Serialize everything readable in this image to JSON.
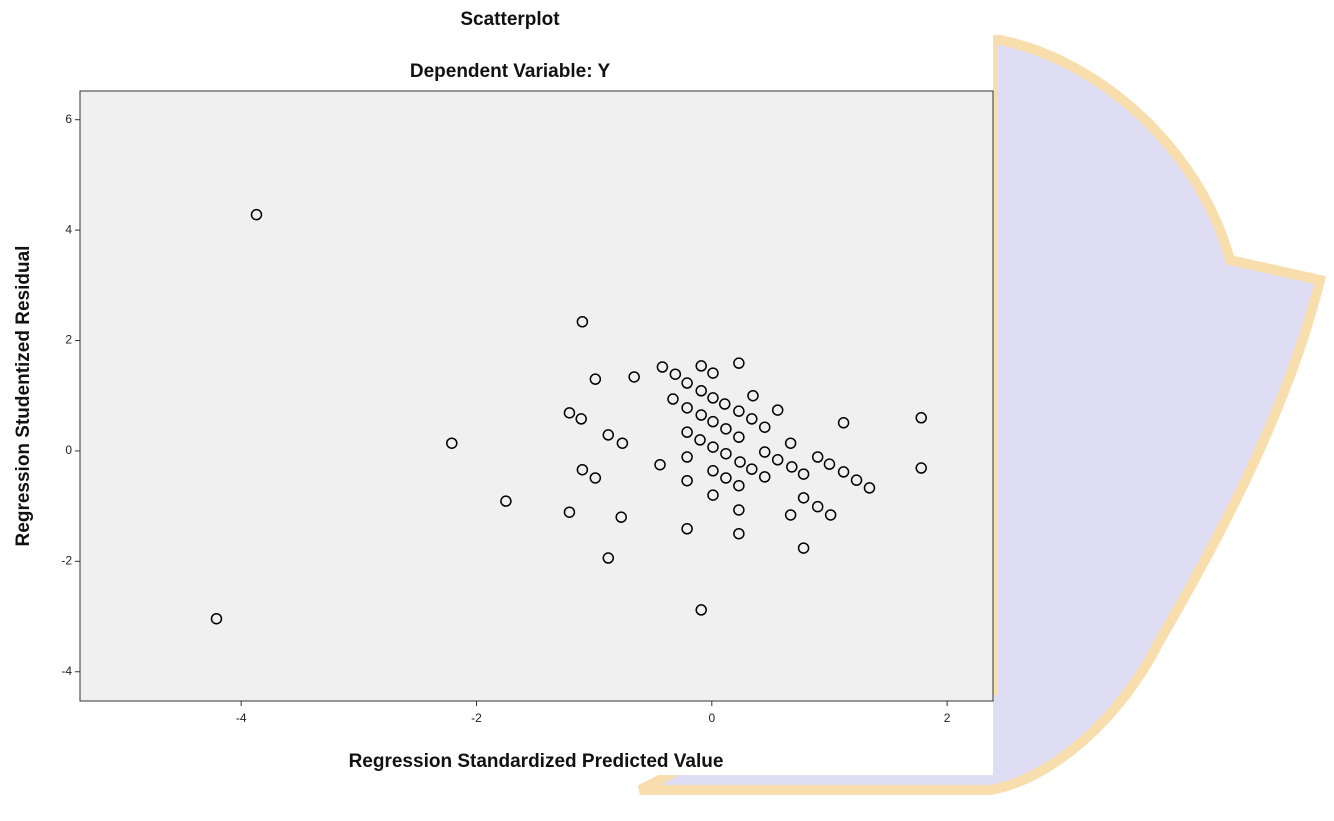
{
  "chart_data": {
    "type": "scatter",
    "title": "Scatterplot",
    "subtitle": "Dependent Variable: Y",
    "x_label": "Regression Standardized Predicted Value",
    "y_label": "Regression Studentized Residual",
    "marker_color": "#000000",
    "xlim": [
      -5.37,
      2.39
    ],
    "ylim": [
      -4.53,
      6.52
    ],
    "xticks": [
      -4,
      -2,
      0,
      2
    ],
    "yticks": [
      -4,
      -2,
      0,
      2,
      4,
      6
    ],
    "x": [
      -3.87,
      -4.21,
      -2.21,
      -1.75,
      -1.1,
      -0.99,
      -0.66,
      -1.21,
      -1.11,
      -0.88,
      -0.76,
      -1.1,
      -0.99,
      -1.21,
      -0.77,
      -0.88,
      -0.09,
      -0.42,
      -0.31,
      -0.21,
      -0.09,
      0.01,
      0.23,
      -0.33,
      -0.21,
      -0.09,
      0.01,
      0.11,
      -0.09,
      0.01,
      0.12,
      0.23,
      0.35,
      0.34,
      0.45,
      0.56,
      -0.21,
      -0.1,
      0.01,
      0.23,
      0.12,
      -0.44,
      -0.21,
      -0.21,
      0.01,
      0.12,
      0.23,
      0.24,
      0.34,
      0.45,
      0.45,
      0.56,
      0.67,
      0.68,
      0.78,
      0.9,
      1.0,
      1.12,
      1.23,
      1.34,
      1.12,
      1.78,
      1.78,
      0.01,
      0.23,
      0.23,
      -0.21,
      0.67,
      0.78,
      0.9,
      1.01,
      0.78
    ],
    "values": [
      4.28,
      -3.04,
      0.14,
      -0.91,
      2.34,
      1.3,
      1.34,
      0.69,
      0.58,
      0.29,
      0.14,
      -0.34,
      -0.49,
      -1.11,
      -1.2,
      -1.94,
      -2.88,
      1.52,
      1.39,
      1.23,
      1.54,
      1.41,
      1.59,
      0.94,
      0.78,
      1.09,
      0.96,
      0.85,
      0.65,
      0.53,
      0.4,
      0.72,
      1.0,
      0.58,
      0.43,
      0.74,
      0.34,
      0.2,
      0.07,
      0.25,
      -0.05,
      -0.25,
      -0.11,
      -0.54,
      -0.36,
      -0.49,
      -0.63,
      -0.2,
      -0.33,
      -0.02,
      -0.47,
      -0.16,
      0.14,
      -0.29,
      -0.42,
      -0.11,
      -0.24,
      -0.38,
      -0.53,
      -0.67,
      0.51,
      0.6,
      -0.31,
      -0.8,
      -1.07,
      -1.5,
      -1.41,
      -1.16,
      -0.85,
      -1.01,
      -1.16,
      -1.76
    ]
  }
}
